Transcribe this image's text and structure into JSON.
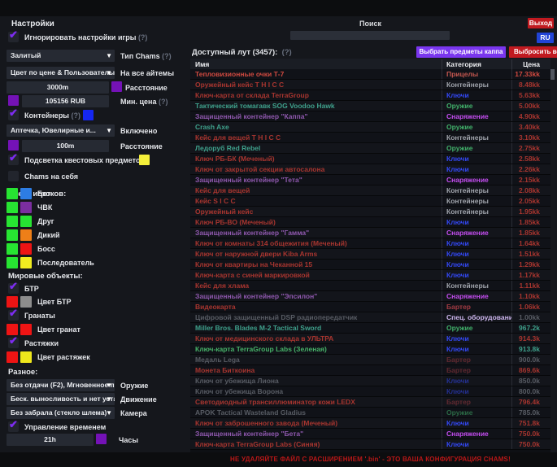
{
  "topbar": {
    "search_label": "Поиск",
    "search_value": "",
    "exit_button": "Выход",
    "lang_button": "RU"
  },
  "settings": {
    "title": "Настройки",
    "ignore_game": {
      "label": "Игнорировать настройки игры",
      "help": "(?)",
      "checked": true
    },
    "chams_type": {
      "value": "Залитый",
      "label": "Тип Chams",
      "help": "(?)"
    },
    "all_items": {
      "value": "Цвет по цене & Пользователы",
      "label": "На все айтемы"
    },
    "distance": {
      "value": "3000m",
      "label": "Расстояние",
      "swatch": "#7412b6"
    },
    "min_price": {
      "value": "105156 RUB",
      "label": "Мин. цена",
      "help": "(?)",
      "swatch": "#7412b6"
    },
    "containers": {
      "label": "Контейнеры",
      "help": "(?)",
      "checked": true,
      "swatch": "#1527f2"
    },
    "meds": {
      "value": "Аптечка, Ювелирные и...",
      "label": "Включено"
    },
    "distance2": {
      "value": "100m",
      "label": "Расстояние",
      "swatch": "#7412b6"
    },
    "quest_items": {
      "label": "Подсветка квестовых предметов",
      "checked": true,
      "swatch": "#f4ef3a"
    },
    "chams_self": {
      "label": "Chams на себя",
      "checked": false
    },
    "player_colors": {
      "title": "Цвета игроков:",
      "rows": [
        {
          "label": "Бот",
          "c1": "#27e432",
          "c2": "#2d7de4"
        },
        {
          "label": "ЧВК",
          "c1": "#27e432",
          "c2": "#7b2e9f"
        },
        {
          "label": "Друг",
          "c1": "#27e432",
          "c2": "#27e432"
        },
        {
          "label": "Дикий",
          "c1": "#27e432",
          "c2": "#ee7f18"
        },
        {
          "label": "Босс",
          "c1": "#27e432",
          "c2": "#ee1414"
        },
        {
          "label": "Последователь",
          "c1": "#27e432",
          "c2": "#f0ec20"
        }
      ]
    },
    "world_objects": {
      "title": "Мировые объекты:",
      "btr": {
        "label": "БТР",
        "checked": true
      },
      "btr_color": {
        "label": "Цвет БТР",
        "c1": "#ee1414",
        "c2": "#8d8d8d"
      },
      "grenades": {
        "label": "Гранаты",
        "checked": true
      },
      "grenade_color": {
        "label": "Цвет гранат",
        "c1": "#ee1414",
        "c2": "#ee1414"
      },
      "tripwires": {
        "label": "Растяжки",
        "checked": true
      },
      "tripwire_color": {
        "label": "Цвет растяжек",
        "c1": "#ee1414",
        "c2": "#eee61c"
      }
    },
    "misc": {
      "title": "Разное:",
      "weapon": {
        "value": "Без отдачи (F2), Мгновенное п",
        "label": "Оружие"
      },
      "movement": {
        "value": "Беск. выносливость и нет уста",
        "label": "Движение"
      },
      "camera": {
        "value": "Без забрала (стекло шлема)",
        "label": "Камера"
      },
      "time_control": {
        "label": "Управление временем",
        "checked": true
      },
      "hours": {
        "value": "21h",
        "label": "Часы",
        "swatch": "#7412b6"
      }
    }
  },
  "loot": {
    "header": "Доступный лут (3457):",
    "help": "(?)",
    "select_kappa_button": "Выбрать предметы каппа",
    "drop_all_button": "Выбросить все",
    "columns": [
      "Имя",
      "Категория",
      "Цена"
    ],
    "accents": {
      "kappa_button": "#7a36ee",
      "drop_button": "#c11a20",
      "exit_button": "#c11a20",
      "lang_button": "#2144d6"
    },
    "palette": {
      "red": "#a8352f",
      "bright": "#d24a40",
      "teal": "#3fa18c",
      "green": "#46b268",
      "purple": "#8f58ae",
      "dim": "#585c64"
    },
    "cat_colors": {
      "Прицелы": "#c4574f",
      "Контейнеры": "#a0a4ac",
      "Ключи": "#3348f5",
      "Оружие": "#41b06a",
      "Снаряжение": "#c44df0",
      "Бартер": "#a03a42",
      "Спец. оборудование": "#cdb6ee"
    },
    "rows": [
      {
        "name": "Тепловизионные очки Т-7",
        "cat": "Прицелы",
        "price": "17.33kk",
        "nt": "bright",
        "pt": "bright"
      },
      {
        "name": "Оружейный кейс T H I C C",
        "cat": "Контейнеры",
        "price": "8.48kk",
        "nt": "red",
        "pt": "red"
      },
      {
        "name": "Ключ-карта от склада TerraGroup",
        "cat": "Ключи",
        "price": "5.63kk",
        "nt": "red",
        "pt": "red"
      },
      {
        "name": "Тактический томагавк SOG Voodoo Hawk",
        "cat": "Оружие",
        "price": "5.00kk",
        "nt": "teal",
        "pt": "red"
      },
      {
        "name": "Защищенный контейнер \"Каппа\"",
        "cat": "Снаряжение",
        "price": "4.90kk",
        "nt": "purple",
        "pt": "red"
      },
      {
        "name": "Crash Axe",
        "cat": "Оружие",
        "price": "3.40kk",
        "nt": "teal",
        "pt": "red"
      },
      {
        "name": "Кейс для вещей T H I C C",
        "cat": "Контейнеры",
        "price": "3.10kk",
        "nt": "red",
        "pt": "red"
      },
      {
        "name": "Ледоруб Red Rebel",
        "cat": "Оружие",
        "price": "2.75kk",
        "nt": "teal",
        "pt": "red"
      },
      {
        "name": "Ключ РБ-БК (Меченый)",
        "cat": "Ключи",
        "price": "2.58kk",
        "nt": "red",
        "pt": "red"
      },
      {
        "name": "Ключ от закрытой секции автосалона",
        "cat": "Ключи",
        "price": "2.26kk",
        "nt": "red",
        "pt": "red"
      },
      {
        "name": "Защищенный контейнер \"Тета\"",
        "cat": "Снаряжение",
        "price": "2.15kk",
        "nt": "purple",
        "pt": "red"
      },
      {
        "name": "Кейс для вещей",
        "cat": "Контейнеры",
        "price": "2.08kk",
        "nt": "red",
        "pt": "red"
      },
      {
        "name": "Кейс S I C C",
        "cat": "Контейнеры",
        "price": "2.05kk",
        "nt": "red",
        "pt": "red"
      },
      {
        "name": "Оружейный кейс",
        "cat": "Контейнеры",
        "price": "1.95kk",
        "nt": "red",
        "pt": "red"
      },
      {
        "name": "Ключ РБ-ВО (Меченый)",
        "cat": "Ключи",
        "price": "1.85kk",
        "nt": "red",
        "pt": "red"
      },
      {
        "name": "Защищенный контейнер \"Гамма\"",
        "cat": "Снаряжение",
        "price": "1.85kk",
        "nt": "purple",
        "pt": "red"
      },
      {
        "name": "Ключ от комнаты 314 общежития (Меченый)",
        "cat": "Ключи",
        "price": "1.64kk",
        "nt": "red",
        "pt": "red"
      },
      {
        "name": "Ключ от наружной двери Kiba Arms",
        "cat": "Ключи",
        "price": "1.51kk",
        "nt": "red",
        "pt": "red"
      },
      {
        "name": "Ключ от квартиры на Чеканной 15",
        "cat": "Ключи",
        "price": "1.29kk",
        "nt": "red",
        "pt": "red"
      },
      {
        "name": "Ключ-карта с синей маркировкой",
        "cat": "Ключи",
        "price": "1.17kk",
        "nt": "red",
        "pt": "red"
      },
      {
        "name": "Кейс для хлама",
        "cat": "Контейнеры",
        "price": "1.11kk",
        "nt": "red",
        "pt": "red"
      },
      {
        "name": "Защищенный контейнер \"Эпсилон\"",
        "cat": "Снаряжение",
        "price": "1.10kk",
        "nt": "purple",
        "pt": "red"
      },
      {
        "name": "Видеокарта",
        "cat": "Бартер",
        "price": "1.06kk",
        "nt": "red",
        "pt": "red"
      },
      {
        "name": "Цифровой защищенный DSP радиопередатчик",
        "cat": "Спец. оборудование",
        "price": "1.00kk",
        "nt": "dim",
        "pt": "dim"
      },
      {
        "name": "Miller Bros. Blades M-2 Tactical Sword",
        "cat": "Оружие",
        "price": "967.2k",
        "nt": "teal",
        "pt": "teal"
      },
      {
        "name": "Ключ от медицинского склада в УЛЬТРА",
        "cat": "Ключи",
        "price": "914.3k",
        "nt": "red",
        "pt": "red"
      },
      {
        "name": "Ключ-карта TerraGroup Labs (Зеленая)",
        "cat": "Ключи",
        "price": "913.8k",
        "nt": "green",
        "pt": "teal"
      },
      {
        "name": "Медаль Lega",
        "cat": "Бартер",
        "price": "900.0k",
        "nt": "dim",
        "pt": "dim",
        "cd": true
      },
      {
        "name": "Монета Биткоина",
        "cat": "Бартер",
        "price": "869.6k",
        "nt": "red",
        "pt": "red",
        "cd": true
      },
      {
        "name": "Ключ от убежища Лиона",
        "cat": "Ключи",
        "price": "850.0k",
        "nt": "dim",
        "pt": "dim",
        "cd": true
      },
      {
        "name": "Ключ от убежища Ворона",
        "cat": "Ключи",
        "price": "800.0k",
        "nt": "dim",
        "pt": "dim",
        "cd": true
      },
      {
        "name": "Светодиодный трансиллюминатор кожи LEDX",
        "cat": "Бартер",
        "price": "796.4k",
        "nt": "red",
        "pt": "red",
        "cd": true
      },
      {
        "name": "APOK Tactical Wasteland Gladius",
        "cat": "Оружие",
        "price": "785.0k",
        "nt": "dim",
        "pt": "dim",
        "cd": true
      },
      {
        "name": "Ключ от заброшенного завода (Меченый)",
        "cat": "Ключи",
        "price": "751.8k",
        "nt": "red",
        "pt": "red"
      },
      {
        "name": "Защищенный контейнер \"Бета\"",
        "cat": "Снаряжение",
        "price": "750.0k",
        "nt": "purple",
        "pt": "red"
      },
      {
        "name": "Ключ-карта TerraGroup Labs (Синяя)",
        "cat": "Ключи",
        "price": "750.0k",
        "nt": "red",
        "pt": "red"
      }
    ]
  },
  "footer": {
    "warning": "НЕ УДАЛЯЙТЕ ФАЙЛ С РАСШИРЕНИЕМ '.bin'  -  ЭТО ВАША КОНФИГУРАЦИЯ CHAMS!"
  }
}
